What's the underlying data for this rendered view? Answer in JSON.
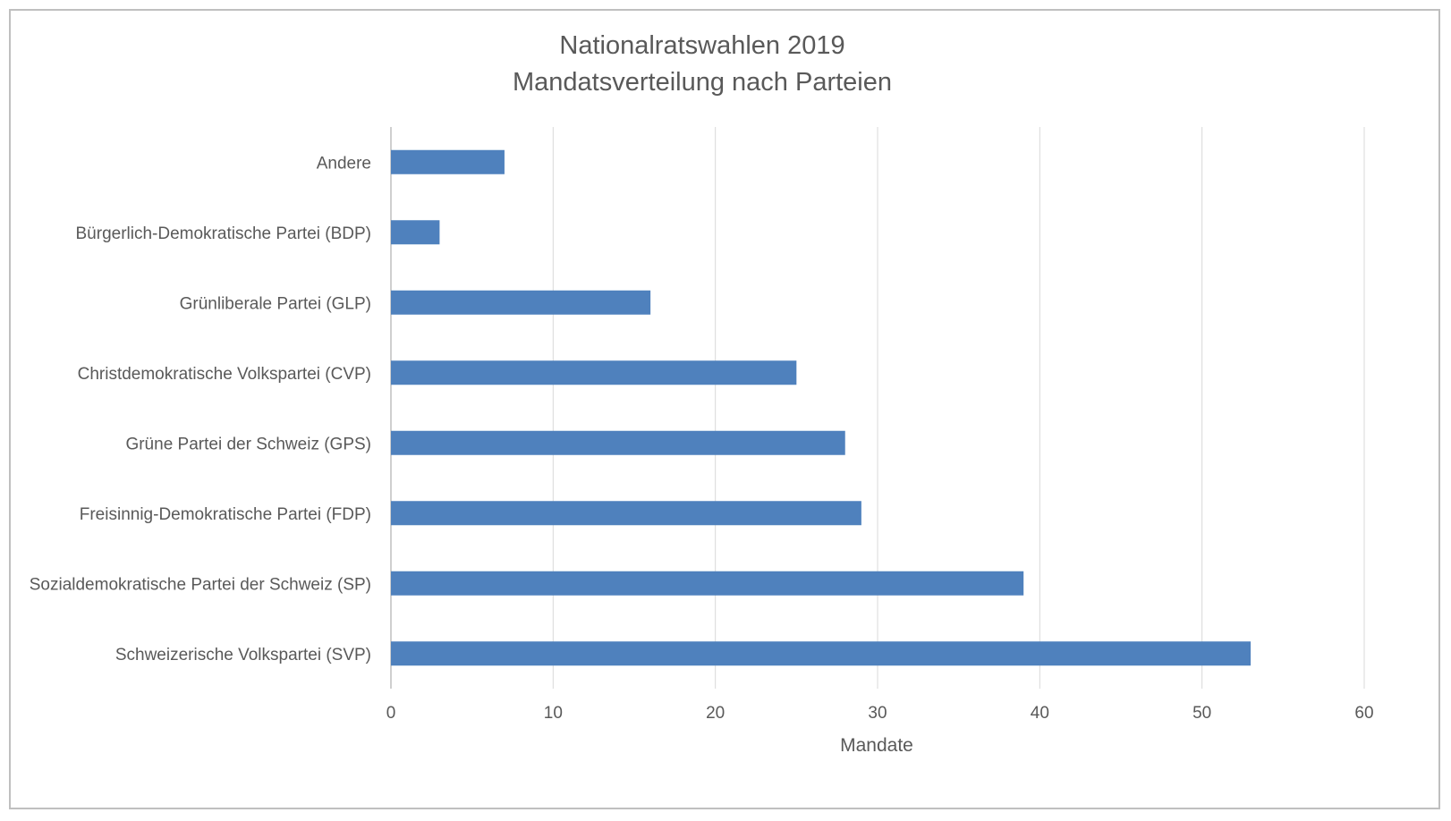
{
  "chart_data": {
    "type": "bar",
    "orientation": "horizontal",
    "title": [
      "Nationalratswahlen 2019",
      "Mandatsverteilung nach Parteien"
    ],
    "categories": [
      "Andere",
      "Bürgerlich-Demokratische Partei (BDP)",
      "Grünliberale Partei (GLP)",
      "Christdemokratische Volkspartei (CVP)",
      "Grüne Partei der Schweiz (GPS)",
      "Freisinnig-Demokratische Partei (FDP)",
      "Sozialdemokratische Partei der Schweiz (SP)",
      "Schweizerische Volkspartei (SVP)"
    ],
    "values": [
      7,
      3,
      16,
      25,
      28,
      29,
      39,
      53
    ],
    "xlabel": "Mandate",
    "ylabel": "",
    "xlim": [
      0,
      60
    ],
    "xticks": [
      "0",
      "10",
      "20",
      "30",
      "40",
      "50",
      "60"
    ],
    "grid": true,
    "bar_color": "#4f81bd",
    "grid_color": "#d9d9d9"
  }
}
